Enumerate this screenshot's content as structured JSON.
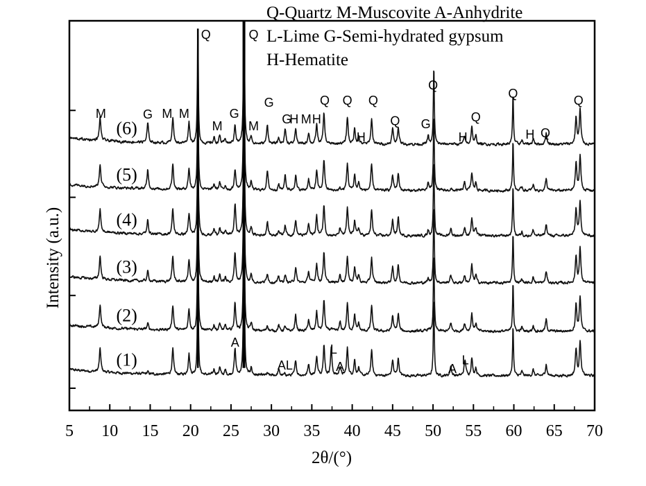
{
  "chart_data": {
    "type": "line",
    "title": "",
    "xlabel": "2θ/(°)",
    "ylabel": "Intensity (a.u.)",
    "xlim": [
      5,
      70
    ],
    "ylim": [
      0,
      100
    ],
    "xticks": [
      5,
      10,
      15,
      20,
      25,
      30,
      35,
      40,
      45,
      50,
      55,
      60,
      65,
      70
    ],
    "grid": false,
    "legend_position": "top-right",
    "legend_lines": [
      "Q-Quartz  M-Muscovite  A-Anhydrite",
      "L-Lime  G-Semi-hydrated gypsum",
      "H-Hematite"
    ],
    "line_color": "#111111",
    "peaks": [
      [
        8.8,
        6,
        "M"
      ],
      [
        14.7,
        5,
        "G"
      ],
      [
        17.8,
        6.5,
        "M"
      ],
      [
        19.8,
        5.5,
        "M"
      ],
      [
        20.9,
        30,
        "Q"
      ],
      [
        22.9,
        1.5,
        "M"
      ],
      [
        23.6,
        2,
        "M"
      ],
      [
        24.3,
        1.2,
        "M"
      ],
      [
        25.5,
        4,
        "G"
      ],
      [
        25.5,
        4,
        "A"
      ],
      [
        26.6,
        45,
        "Q"
      ],
      [
        27.5,
        2,
        "M"
      ],
      [
        29.5,
        5,
        "G"
      ],
      [
        30.9,
        1.5,
        "M"
      ],
      [
        31.7,
        4,
        "G"
      ],
      [
        33.0,
        4,
        "H"
      ],
      [
        34.6,
        3,
        "M"
      ],
      [
        35.6,
        5,
        "H"
      ],
      [
        36.5,
        8,
        "Q"
      ],
      [
        37.4,
        7,
        "L"
      ],
      [
        38.5,
        1.5,
        "A"
      ],
      [
        39.4,
        7,
        "Q"
      ],
      [
        40.3,
        4,
        "Q"
      ],
      [
        40.8,
        2,
        "H"
      ],
      [
        42.4,
        6.5,
        "Q"
      ],
      [
        45.0,
        4,
        "Q"
      ],
      [
        45.7,
        4.5,
        "Q"
      ],
      [
        49.4,
        2,
        "G"
      ],
      [
        50.1,
        20,
        "Q"
      ],
      [
        52.2,
        1.5,
        "A"
      ],
      [
        53.9,
        2,
        "H"
      ],
      [
        54.0,
        2.5,
        "L"
      ],
      [
        54.8,
        4.5,
        "Q"
      ],
      [
        55.3,
        2,
        "Q"
      ],
      [
        59.9,
        13,
        "Q"
      ],
      [
        61.0,
        1,
        "Q"
      ],
      [
        62.4,
        1.5,
        "H"
      ],
      [
        64.0,
        3,
        "Q"
      ],
      [
        67.7,
        7,
        "Q"
      ],
      [
        68.2,
        9,
        "Q"
      ]
    ],
    "series": [
      {
        "name": "(1)",
        "offset": 8.9,
        "phase_scale": {
          "G": 0.1,
          "A": 1.6,
          "L": 1.0
        }
      },
      {
        "name": "(2)",
        "offset": 20.3,
        "phase_scale": {
          "G": 0.3,
          "A": 1.5,
          "L": 0.1
        }
      },
      {
        "name": "(3)",
        "offset": 32.7,
        "phase_scale": {
          "G": 0.5,
          "A": 1.4,
          "L": 0.0
        }
      },
      {
        "name": "(4)",
        "offset": 44.8,
        "phase_scale": {
          "G": 0.7,
          "A": 1.3,
          "L": 0.0
        }
      },
      {
        "name": "(5)",
        "offset": 56.4,
        "phase_scale": {
          "G": 1.0,
          "A": 0.3,
          "L": 0.0
        }
      },
      {
        "name": "(6)",
        "offset": 68.3,
        "phase_scale": {
          "G": 1.0,
          "A": 0.2,
          "L": 0.0
        }
      }
    ],
    "annotations": [
      {
        "text": "M",
        "x": 8.9,
        "y": 76.5
      },
      {
        "text": "G",
        "x": 14.7,
        "y": 76.3
      },
      {
        "text": "M",
        "x": 17.1,
        "y": 76.5
      },
      {
        "text": "M",
        "x": 19.2,
        "y": 76.5
      },
      {
        "text": "Q",
        "x": 21.9,
        "y": 96.8
      },
      {
        "text": "Q",
        "x": 27.8,
        "y": 96.8
      },
      {
        "text": "M",
        "x": 23.3,
        "y": 73.3
      },
      {
        "text": "G",
        "x": 25.4,
        "y": 76.5
      },
      {
        "text": "M",
        "x": 27.8,
        "y": 73.3
      },
      {
        "text": "G",
        "x": 29.7,
        "y": 79.4
      },
      {
        "text": "G",
        "x": 31.9,
        "y": 75.1
      },
      {
        "text": "H",
        "x": 32.8,
        "y": 75.1
      },
      {
        "text": "M",
        "x": 34.3,
        "y": 75.1
      },
      {
        "text": "H",
        "x": 35.6,
        "y": 75.1
      },
      {
        "text": "Q",
        "x": 36.6,
        "y": 79.9
      },
      {
        "text": "Q",
        "x": 39.4,
        "y": 79.9
      },
      {
        "text": "H",
        "x": 41.1,
        "y": 70.5
      },
      {
        "text": "Q",
        "x": 42.6,
        "y": 79.9
      },
      {
        "text": "Q",
        "x": 45.3,
        "y": 74.6
      },
      {
        "text": "G",
        "x": 49.1,
        "y": 73.8
      },
      {
        "text": "Q",
        "x": 50.0,
        "y": 83.8
      },
      {
        "text": "H",
        "x": 53.7,
        "y": 70.5
      },
      {
        "text": "Q",
        "x": 55.3,
        "y": 75.6
      },
      {
        "text": "Q",
        "x": 59.9,
        "y": 81.7
      },
      {
        "text": "H",
        "x": 62.0,
        "y": 71.2
      },
      {
        "text": "Q",
        "x": 63.9,
        "y": 71.5
      },
      {
        "text": "Q",
        "x": 68.0,
        "y": 79.9
      },
      {
        "text": "A",
        "x": 25.5,
        "y": 17.8
      },
      {
        "text": "AL",
        "x": 31.7,
        "y": 11.9
      },
      {
        "text": "L",
        "x": 37.7,
        "y": 16.0
      },
      {
        "text": "A",
        "x": 38.5,
        "y": 11.6
      },
      {
        "text": "A",
        "x": 52.4,
        "y": 11.0
      },
      {
        "text": "L",
        "x": 54.0,
        "y": 13.3
      }
    ]
  }
}
